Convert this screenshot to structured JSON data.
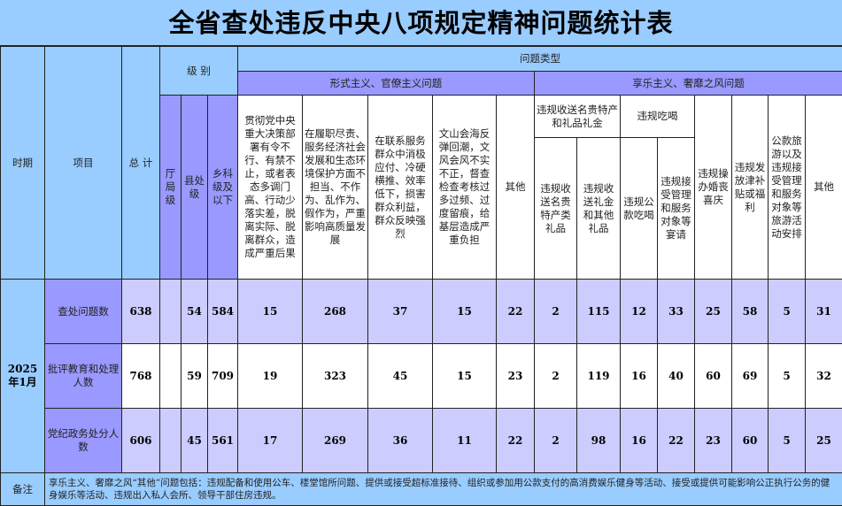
{
  "title": "全省查处违反中央八项规定精神问题统计表",
  "colors": {
    "light_blue": "#99ccff",
    "purple": "#9999ff",
    "light_purple": "#ccccff",
    "white": "#ffffff"
  },
  "headers": {
    "period": "时期",
    "item": "项目",
    "total": "总 计",
    "level": "级 别",
    "levels": [
      "厅局级",
      "县处级",
      "乡科级及以下"
    ],
    "problem_type": "问题类型",
    "formalism": "形式主义、官僚主义问题",
    "formalism_cols": [
      "贯彻党中央重大决策部署有令不行、有禁不止，或者表态多调门高、行动少落实差，脱离实际、脱离群众，造成严重后果",
      "在履职尽责、服务经济社会发展和生态环境保护方面不担当、不作为、乱作为、假作为，严重影响高质量发展",
      "在联系服务群众中消极应付、冷硬横推、效率低下，损害群众利益，群众反映强烈",
      "文山会海反弹回潮，文风会风不实不正，督查检查考核过多过频、过度留痕，给基层造成严重负担",
      "其他"
    ],
    "hedonism": "享乐主义、奢靡之风问题",
    "gifts_group": "违规收送名贵特产和礼品礼金",
    "gifts_cols": [
      "违规收送名贵特产类礼品",
      "违规收送礼金和其他礼品"
    ],
    "eating_group": "违规吃喝",
    "eating_cols": [
      "违规公款吃喝",
      "违规接受管理和服务对象等宴请"
    ],
    "other_hedonism_cols": [
      "违规操办婚丧喜庆",
      "违规发放津补贴或福利",
      "公款旅游以及违规接受管理和服务对象等旅游活动安排",
      "其他"
    ]
  },
  "period": "2025年1月",
  "rows": [
    {
      "item": "查处问题数",
      "total": "638",
      "levels": [
        "",
        "54",
        "584"
      ],
      "values": [
        "15",
        "268",
        "37",
        "15",
        "22",
        "2",
        "115",
        "12",
        "33",
        "25",
        "58",
        "5",
        "31"
      ]
    },
    {
      "item": "批评教育和处理人数",
      "total": "768",
      "levels": [
        "",
        "59",
        "709"
      ],
      "values": [
        "19",
        "323",
        "45",
        "15",
        "23",
        "2",
        "119",
        "16",
        "40",
        "60",
        "69",
        "5",
        "32"
      ]
    },
    {
      "item": "党纪政务处分人数",
      "total": "606",
      "levels": [
        "",
        "45",
        "561"
      ],
      "values": [
        "17",
        "269",
        "36",
        "11",
        "22",
        "2",
        "98",
        "16",
        "22",
        "23",
        "60",
        "5",
        "25"
      ]
    }
  ],
  "note": {
    "label": "备注",
    "text": "享乐主义、奢靡之风“其他”问题包括：违规配备和使用公车、楼堂馆所问题、提供或接受超标准接待、组织或参加用公款支付的高消费娱乐健身等活动、接受或提供可能影响公正执行公务的健身娱乐等活动、违规出入私人会所、领导干部住房违规。"
  }
}
